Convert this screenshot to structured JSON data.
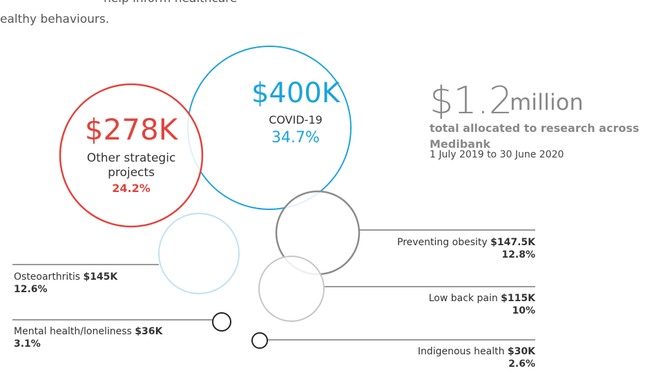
{
  "chart_data": {
    "type": "bubble",
    "intro": [
      "help inform healthcare",
      "ealthy behaviours."
    ],
    "headline": {
      "amount": "$1.2",
      "unit": "million",
      "caption": "total allocated to research across Medibank",
      "period": "1 July 2019 to 30 June 2020"
    },
    "series": [
      {
        "name": "COVID-19",
        "values": [
          400
        ],
        "value_labels": [
          "$400K"
        ],
        "share": 34.7,
        "share_label": "34.7%",
        "color": "#1ba3dc"
      },
      {
        "name": "Other strategic projects",
        "values": [
          278
        ],
        "value_labels": [
          "$278K"
        ],
        "share": 24.2,
        "share_label": "24.2%",
        "color": "#e2433b"
      },
      {
        "name": "Preventing obesity",
        "values": [
          147.5
        ],
        "value_labels": [
          "$147.5K"
        ],
        "share": 12.8,
        "share_label": "12.8%",
        "color": "#8a8a8a"
      },
      {
        "name": "Osteoarthritis",
        "values": [
          145
        ],
        "value_labels": [
          "$145K"
        ],
        "share": 12.6,
        "share_label": "12.6%",
        "color": "#bfe2f2"
      },
      {
        "name": "Low back pain",
        "values": [
          115
        ],
        "value_labels": [
          "$115K"
        ],
        "share": 10,
        "share_label": "10%",
        "color": "#c6c6c6"
      },
      {
        "name": "Mental health/loneliness",
        "values": [
          36
        ],
        "value_labels": [
          "$36K"
        ],
        "share": 3.1,
        "share_label": "3.1%",
        "color": "#222222"
      },
      {
        "name": "Indigenous health",
        "values": [
          30
        ],
        "value_labels": [
          "$30K"
        ],
        "share": 2.6,
        "share_label": "2.6%",
        "color": "#222222"
      }
    ]
  }
}
